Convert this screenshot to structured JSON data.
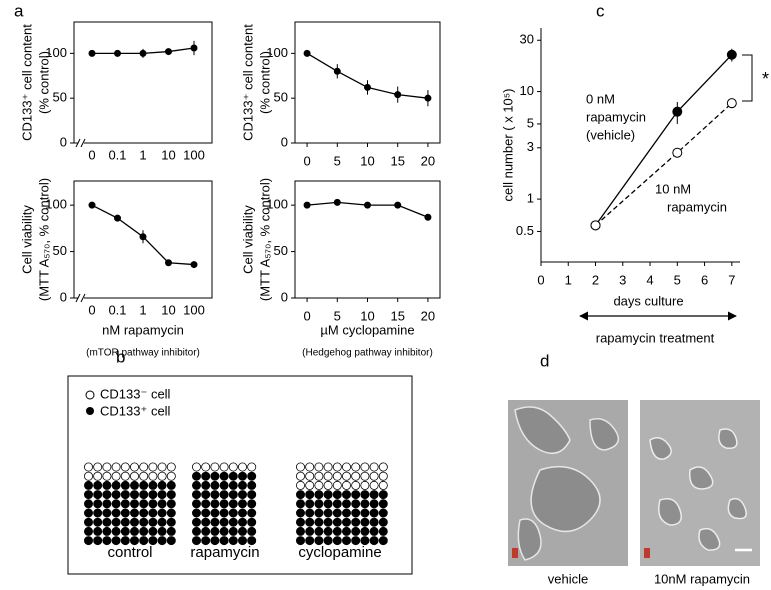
{
  "panel_labels": [
    "a",
    "b",
    "c",
    "d"
  ],
  "chart_data": [
    {
      "type": "line",
      "ylabel": [
        "CD133⁺ cell content",
        "(% control)"
      ],
      "categories": [
        "0",
        "0.1",
        "1",
        "10",
        "100"
      ],
      "axis_break": true,
      "frame": true,
      "ylim": [
        0,
        135
      ],
      "yticks": [
        0,
        50,
        100
      ],
      "series": [
        {
          "color": "#000000",
          "marker": "filled",
          "style": "solid",
          "values": [
            100,
            100,
            100,
            102,
            106
          ],
          "errors": [
            2,
            3,
            5,
            3,
            8
          ]
        }
      ]
    },
    {
      "type": "line",
      "ylabel": [
        "CD133⁺ cell content",
        "(% control)"
      ],
      "x": [
        0,
        5,
        10,
        15,
        20
      ],
      "xlim": [
        -2,
        22
      ],
      "xticks": [
        0,
        5,
        10,
        15,
        20
      ],
      "frame": true,
      "ylim": [
        0,
        135
      ],
      "yticks": [
        0,
        50,
        100
      ],
      "series": [
        {
          "color": "#000000",
          "marker": "filled",
          "style": "solid",
          "values": [
            100,
            80,
            62,
            54,
            50
          ],
          "errors": [
            0,
            8,
            8,
            9,
            9
          ]
        }
      ]
    },
    {
      "type": "line",
      "ylabel": [
        "Cell viability",
        "(MTT A₅₇₀, % control)"
      ],
      "xlabel": "nM rapamycin",
      "xnote": "(mTOR pathway inhibitor)",
      "categories": [
        "0",
        "0.1",
        "1",
        "10",
        "100"
      ],
      "axis_break": true,
      "frame": true,
      "ylim": [
        0,
        126
      ],
      "yticks": [
        0,
        50,
        100
      ],
      "series": [
        {
          "color": "#000000",
          "marker": "filled",
          "style": "solid",
          "values": [
            100,
            86,
            66,
            38,
            36
          ],
          "errors": [
            2,
            3,
            7,
            2,
            3
          ]
        }
      ]
    },
    {
      "type": "line",
      "ylabel": [
        "Cell viability",
        "(MTT A₅₇₀, % control)"
      ],
      "xlabel": "µM cyclopamine",
      "xnote": "(Hedgehog pathway inhibitor)",
      "x": [
        0,
        5,
        10,
        15,
        20
      ],
      "xlim": [
        -2,
        22
      ],
      "xticks": [
        0,
        5,
        10,
        15,
        20
      ],
      "frame": true,
      "ylim": [
        0,
        126
      ],
      "yticks": [
        0,
        50,
        100
      ],
      "series": [
        {
          "color": "#000000",
          "marker": "filled",
          "style": "solid",
          "values": [
            100,
            103,
            100,
            100,
            87
          ],
          "errors": [
            2,
            3,
            3,
            3,
            3
          ]
        }
      ]
    },
    {
      "type": "line",
      "ylabel": [
        "cell number ( x 10⁵)"
      ],
      "xlabel": "days culture",
      "frame": false,
      "ylog": true,
      "x": [
        2,
        5,
        7
      ],
      "xlim": [
        0,
        7.3
      ],
      "xticks": [
        0,
        1,
        2,
        3,
        4,
        5,
        6,
        7
      ],
      "ylim": [
        0.26,
        39
      ],
      "yticks": [
        0.5,
        1,
        3,
        5,
        10,
        30
      ],
      "annotations": [
        "0 nM",
        "rapamycin",
        "(vehicle)",
        "10 nM",
        "rapamycin",
        "*"
      ],
      "treatment": "rapamycin treatment",
      "series": [
        {
          "name": "0 nM rapamycin (vehicle)",
          "color": "#000000",
          "marker": "filled",
          "style": "solid",
          "values": [
            0.57,
            6.5,
            22
          ],
          "errors": [
            0.05,
            1.5,
            3
          ]
        },
        {
          "name": "10 nM rapamycin",
          "color": "#000000",
          "marker": "open",
          "style": "dashed",
          "values": [
            0.57,
            2.7,
            7.8
          ],
          "errors": [
            0.05,
            0.2,
            0.8
          ]
        }
      ]
    }
  ],
  "diagram": {
    "legend": [
      "CD133⁻ cell",
      "CD133⁺ cell"
    ],
    "groups": [
      {
        "label": "control",
        "cols": 10,
        "open_rows": 2,
        "filled_rows": 7
      },
      {
        "label": "rapamycin",
        "cols": 7,
        "open_rows": 1,
        "filled_rows": 8
      },
      {
        "label": "cyclopamine",
        "cols": 10,
        "open_rows": 3,
        "filled_rows": 6
      }
    ]
  },
  "micrographs": [
    "vehicle",
    "10nM  rapamycin"
  ]
}
